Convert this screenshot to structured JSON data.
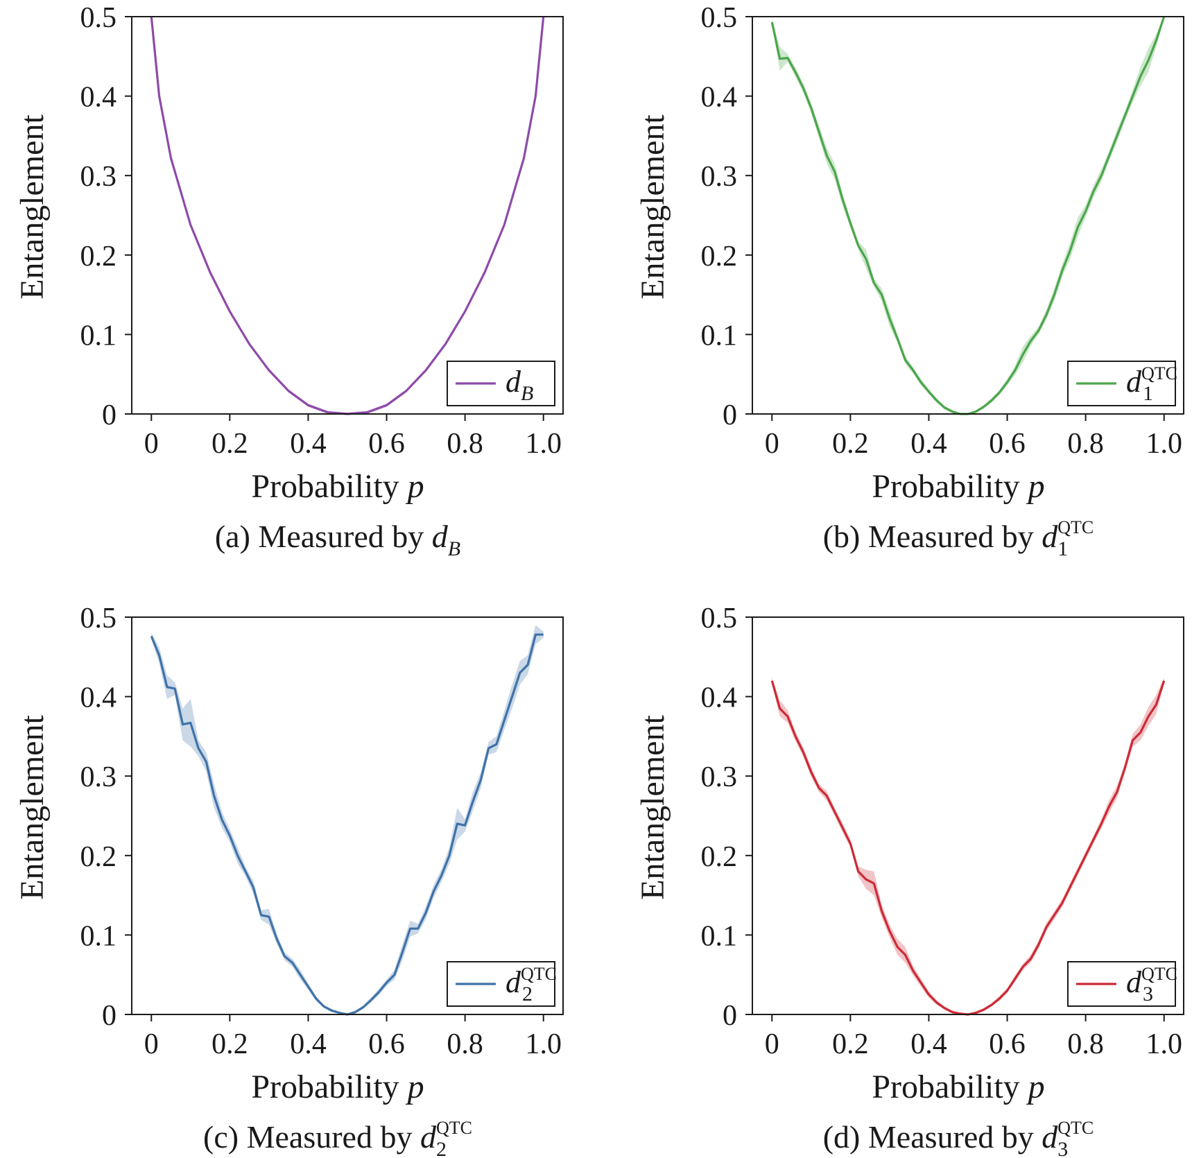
{
  "figure": {
    "colors": {
      "dB": "#8e4aa8",
      "d1": "#4ba64b",
      "d2": "#3f72a8",
      "d3": "#cc2a36"
    }
  },
  "chart_data": [
    {
      "id": "a",
      "type": "line",
      "caption_prefix": "(a) Measured by ",
      "legend": {
        "base": "d",
        "sub": "B",
        "sup": "",
        "placement": "bottom-right"
      },
      "xlabel": "Probability",
      "xlabel_var": "p",
      "ylabel": "Entanglement",
      "xlim": [
        -0.05,
        1.05
      ],
      "ylim": [
        0,
        0.5
      ],
      "xticks": [
        0,
        0.2,
        0.4,
        0.6,
        0.8,
        1.0
      ],
      "xtick_labels": [
        "0",
        "0.2",
        "0.4",
        "0.6",
        "0.8",
        "1.0"
      ],
      "yticks": [
        0,
        0.1,
        0.2,
        0.3,
        0.4,
        0.5
      ],
      "ytick_labels": [
        "0",
        "0.1",
        "0.2",
        "0.3",
        "0.4",
        "0.5"
      ],
      "grid": false,
      "color": "#8e4aa8",
      "x": [
        0,
        0.02,
        0.05,
        0.1,
        0.15,
        0.2,
        0.25,
        0.3,
        0.35,
        0.4,
        0.45,
        0.5,
        0.55,
        0.6,
        0.65,
        0.7,
        0.75,
        0.8,
        0.85,
        0.9,
        0.95,
        0.98,
        1.0
      ],
      "y": [
        0.5,
        0.4,
        0.322,
        0.238,
        0.178,
        0.129,
        0.088,
        0.055,
        0.029,
        0.011,
        0.002,
        0.0,
        0.002,
        0.011,
        0.029,
        0.055,
        0.088,
        0.129,
        0.178,
        0.238,
        0.322,
        0.4,
        0.5
      ],
      "band": [
        0.002,
        0.002,
        0.002,
        0.002,
        0.002,
        0.002,
        0.002,
        0.002,
        0.002,
        0.002,
        0.002,
        0.002,
        0.002,
        0.002,
        0.002,
        0.002,
        0.002,
        0.002,
        0.002,
        0.002,
        0.002,
        0.002,
        0.002
      ]
    },
    {
      "id": "b",
      "type": "line",
      "caption_prefix": "(b) Measured by ",
      "legend": {
        "base": "d",
        "sub": "1",
        "sup": "QTC",
        "placement": "bottom-right"
      },
      "xlabel": "Probability",
      "xlabel_var": "p",
      "ylabel": "Entanglement",
      "xlim": [
        -0.05,
        1.05
      ],
      "ylim": [
        0,
        0.5
      ],
      "xticks": [
        0,
        0.2,
        0.4,
        0.6,
        0.8,
        1.0
      ],
      "xtick_labels": [
        "0",
        "0.2",
        "0.4",
        "0.6",
        "0.8",
        "1.0"
      ],
      "yticks": [
        0,
        0.1,
        0.2,
        0.3,
        0.4,
        0.5
      ],
      "ytick_labels": [
        "0",
        "0.1",
        "0.2",
        "0.3",
        "0.4",
        "0.5"
      ],
      "grid": false,
      "color": "#4ba64b",
      "x": [
        0,
        0.02,
        0.04,
        0.06,
        0.08,
        0.1,
        0.12,
        0.14,
        0.16,
        0.18,
        0.2,
        0.22,
        0.24,
        0.26,
        0.28,
        0.3,
        0.32,
        0.34,
        0.36,
        0.38,
        0.4,
        0.42,
        0.44,
        0.46,
        0.48,
        0.5,
        0.52,
        0.54,
        0.56,
        0.58,
        0.6,
        0.62,
        0.64,
        0.66,
        0.68,
        0.7,
        0.72,
        0.74,
        0.76,
        0.78,
        0.8,
        0.82,
        0.84,
        0.86,
        0.88,
        0.9,
        0.92,
        0.94,
        0.96,
        0.98,
        1.0
      ],
      "y": [
        0.493,
        0.447,
        0.448,
        0.43,
        0.41,
        0.385,
        0.355,
        0.325,
        0.305,
        0.27,
        0.24,
        0.212,
        0.195,
        0.165,
        0.15,
        0.12,
        0.095,
        0.068,
        0.055,
        0.04,
        0.028,
        0.017,
        0.008,
        0.003,
        0.0,
        0.0,
        0.003,
        0.009,
        0.017,
        0.027,
        0.04,
        0.055,
        0.075,
        0.092,
        0.105,
        0.125,
        0.15,
        0.18,
        0.205,
        0.235,
        0.255,
        0.28,
        0.3,
        0.325,
        0.35,
        0.375,
        0.4,
        0.425,
        0.445,
        0.47,
        0.5
      ],
      "band": [
        0.004,
        0.015,
        0.005,
        0.006,
        0.006,
        0.006,
        0.008,
        0.01,
        0.01,
        0.008,
        0.006,
        0.005,
        0.012,
        0.005,
        0.008,
        0.01,
        0.005,
        0.005,
        0.004,
        0.004,
        0.003,
        0.003,
        0.002,
        0.002,
        0.001,
        0.001,
        0.002,
        0.002,
        0.003,
        0.003,
        0.004,
        0.006,
        0.01,
        0.006,
        0.005,
        0.006,
        0.008,
        0.008,
        0.01,
        0.012,
        0.008,
        0.008,
        0.008,
        0.006,
        0.008,
        0.006,
        0.008,
        0.012,
        0.015,
        0.008,
        0.003
      ]
    },
    {
      "id": "c",
      "type": "line",
      "caption_prefix": "(c) Measured by ",
      "legend": {
        "base": "d",
        "sub": "2",
        "sup": "QTC",
        "placement": "bottom-right"
      },
      "xlabel": "Probability",
      "xlabel_var": "p",
      "ylabel": "Entanglement",
      "xlim": [
        -0.05,
        1.05
      ],
      "ylim": [
        0,
        0.5
      ],
      "xticks": [
        0,
        0.2,
        0.4,
        0.6,
        0.8,
        1.0
      ],
      "xtick_labels": [
        "0",
        "0.2",
        "0.4",
        "0.6",
        "0.8",
        "1.0"
      ],
      "yticks": [
        0,
        0.1,
        0.2,
        0.3,
        0.4,
        0.5
      ],
      "ytick_labels": [
        "0",
        "0.1",
        "0.2",
        "0.3",
        "0.4",
        "0.5"
      ],
      "grid": false,
      "color": "#3f72a8",
      "x": [
        0,
        0.02,
        0.04,
        0.06,
        0.08,
        0.1,
        0.12,
        0.14,
        0.16,
        0.18,
        0.2,
        0.22,
        0.24,
        0.26,
        0.28,
        0.3,
        0.32,
        0.34,
        0.36,
        0.38,
        0.4,
        0.42,
        0.44,
        0.46,
        0.48,
        0.5,
        0.52,
        0.54,
        0.56,
        0.58,
        0.6,
        0.62,
        0.64,
        0.66,
        0.68,
        0.7,
        0.72,
        0.74,
        0.76,
        0.78,
        0.8,
        0.82,
        0.84,
        0.86,
        0.88,
        0.9,
        0.92,
        0.94,
        0.96,
        0.98,
        1.0
      ],
      "y": [
        0.476,
        0.452,
        0.412,
        0.41,
        0.365,
        0.367,
        0.335,
        0.318,
        0.275,
        0.245,
        0.225,
        0.2,
        0.18,
        0.16,
        0.125,
        0.123,
        0.095,
        0.073,
        0.065,
        0.05,
        0.035,
        0.02,
        0.01,
        0.005,
        0.002,
        0.0,
        0.003,
        0.009,
        0.018,
        0.028,
        0.04,
        0.05,
        0.078,
        0.108,
        0.108,
        0.128,
        0.155,
        0.175,
        0.2,
        0.24,
        0.238,
        0.268,
        0.295,
        0.335,
        0.34,
        0.37,
        0.4,
        0.43,
        0.44,
        0.478,
        0.478
      ],
      "band": [
        0.004,
        0.01,
        0.015,
        0.008,
        0.02,
        0.03,
        0.01,
        0.012,
        0.015,
        0.01,
        0.008,
        0.01,
        0.006,
        0.008,
        0.006,
        0.01,
        0.006,
        0.005,
        0.005,
        0.006,
        0.004,
        0.003,
        0.002,
        0.002,
        0.001,
        0.001,
        0.002,
        0.002,
        0.003,
        0.004,
        0.004,
        0.006,
        0.01,
        0.01,
        0.006,
        0.008,
        0.008,
        0.008,
        0.01,
        0.02,
        0.008,
        0.012,
        0.01,
        0.008,
        0.01,
        0.012,
        0.015,
        0.015,
        0.012,
        0.012,
        0.004
      ]
    },
    {
      "id": "d",
      "type": "line",
      "caption_prefix": "(d) Measured by ",
      "legend": {
        "base": "d",
        "sub": "3",
        "sup": "QTC",
        "placement": "bottom-right"
      },
      "xlabel": "Probability",
      "xlabel_var": "p",
      "ylabel": "Entanglement",
      "xlim": [
        -0.05,
        1.05
      ],
      "ylim": [
        0,
        0.5
      ],
      "xticks": [
        0,
        0.2,
        0.4,
        0.6,
        0.8,
        1.0
      ],
      "xtick_labels": [
        "0",
        "0.2",
        "0.4",
        "0.6",
        "0.8",
        "1.0"
      ],
      "yticks": [
        0,
        0.1,
        0.2,
        0.3,
        0.4,
        0.5
      ],
      "ytick_labels": [
        "0",
        "0.1",
        "0.2",
        "0.3",
        "0.4",
        "0.5"
      ],
      "grid": false,
      "color": "#cc2a36",
      "x": [
        0,
        0.02,
        0.04,
        0.06,
        0.08,
        0.1,
        0.12,
        0.14,
        0.16,
        0.18,
        0.2,
        0.22,
        0.24,
        0.26,
        0.28,
        0.3,
        0.32,
        0.34,
        0.36,
        0.38,
        0.4,
        0.42,
        0.44,
        0.46,
        0.48,
        0.5,
        0.52,
        0.54,
        0.56,
        0.58,
        0.6,
        0.62,
        0.64,
        0.66,
        0.68,
        0.7,
        0.72,
        0.74,
        0.76,
        0.78,
        0.8,
        0.82,
        0.84,
        0.86,
        0.88,
        0.9,
        0.92,
        0.94,
        0.96,
        0.98,
        1.0
      ],
      "y": [
        0.42,
        0.385,
        0.375,
        0.35,
        0.33,
        0.305,
        0.285,
        0.275,
        0.255,
        0.235,
        0.215,
        0.18,
        0.17,
        0.165,
        0.13,
        0.105,
        0.085,
        0.075,
        0.055,
        0.04,
        0.025,
        0.015,
        0.008,
        0.003,
        0.001,
        0.0,
        0.002,
        0.006,
        0.012,
        0.02,
        0.03,
        0.045,
        0.06,
        0.07,
        0.088,
        0.11,
        0.125,
        0.14,
        0.16,
        0.18,
        0.2,
        0.22,
        0.24,
        0.262,
        0.28,
        0.31,
        0.345,
        0.355,
        0.375,
        0.39,
        0.42
      ],
      "band": [
        0.004,
        0.01,
        0.008,
        0.006,
        0.006,
        0.006,
        0.005,
        0.006,
        0.005,
        0.006,
        0.005,
        0.006,
        0.012,
        0.015,
        0.008,
        0.008,
        0.01,
        0.01,
        0.006,
        0.005,
        0.004,
        0.003,
        0.002,
        0.002,
        0.001,
        0.001,
        0.002,
        0.002,
        0.002,
        0.003,
        0.003,
        0.004,
        0.004,
        0.005,
        0.005,
        0.005,
        0.005,
        0.005,
        0.005,
        0.005,
        0.005,
        0.005,
        0.006,
        0.008,
        0.008,
        0.006,
        0.008,
        0.01,
        0.012,
        0.012,
        0.004
      ]
    }
  ]
}
